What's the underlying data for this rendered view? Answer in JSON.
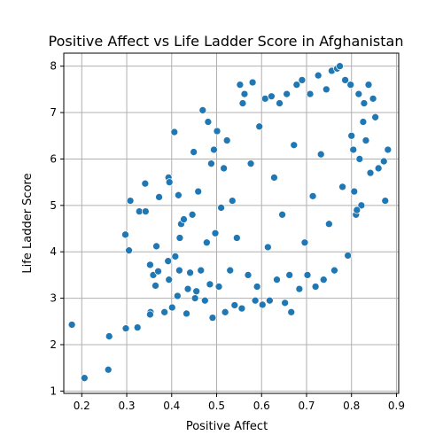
{
  "chart_data": {
    "type": "scatter",
    "title": "Positive Affect vs Life Ladder Score in Afghanistan",
    "xlabel": "Positive Affect",
    "ylabel": "Life Ladder Score",
    "xlim": [
      0.16,
      0.905
    ],
    "ylim": [
      0.95,
      8.28
    ],
    "x_ticks": [
      0.2,
      0.3,
      0.4,
      0.5,
      0.6,
      0.7,
      0.8,
      0.9
    ],
    "x_tick_labels": [
      "0.2",
      "0.3",
      "0.4",
      "0.5",
      "0.6",
      "0.7",
      "0.8",
      "0.9"
    ],
    "y_ticks": [
      1,
      2,
      3,
      4,
      5,
      6,
      7,
      8
    ],
    "y_tick_labels": [
      "1",
      "2",
      "3",
      "4",
      "5",
      "6",
      "7",
      "8"
    ],
    "grid": true,
    "color": "#1f77b4",
    "points": [
      [
        0.178,
        2.43
      ],
      [
        0.206,
        1.28
      ],
      [
        0.259,
        1.46
      ],
      [
        0.261,
        2.18
      ],
      [
        0.298,
        2.35
      ],
      [
        0.324,
        2.37
      ],
      [
        0.297,
        4.37
      ],
      [
        0.305,
        4.03
      ],
      [
        0.308,
        5.1
      ],
      [
        0.328,
        4.87
      ],
      [
        0.342,
        4.87
      ],
      [
        0.341,
        5.47
      ],
      [
        0.352,
        3.72
      ],
      [
        0.353,
        2.7
      ],
      [
        0.352,
        2.65
      ],
      [
        0.359,
        3.5
      ],
      [
        0.366,
        4.12
      ],
      [
        0.364,
        3.27
      ],
      [
        0.37,
        3.58
      ],
      [
        0.372,
        5.18
      ],
      [
        0.384,
        2.7
      ],
      [
        0.392,
        3.8
      ],
      [
        0.393,
        5.6
      ],
      [
        0.394,
        3.4
      ],
      [
        0.395,
        5.5
      ],
      [
        0.401,
        2.8
      ],
      [
        0.406,
        6.58
      ],
      [
        0.408,
        3.9
      ],
      [
        0.413,
        3.05
      ],
      [
        0.415,
        5.22
      ],
      [
        0.417,
        3.6
      ],
      [
        0.418,
        4.3
      ],
      [
        0.421,
        4.6
      ],
      [
        0.427,
        4.7
      ],
      [
        0.433,
        2.67
      ],
      [
        0.436,
        3.2
      ],
      [
        0.441,
        3.55
      ],
      [
        0.446,
        4.8
      ],
      [
        0.449,
        6.15
      ],
      [
        0.452,
        3.0
      ],
      [
        0.455,
        3.15
      ],
      [
        0.459,
        5.3
      ],
      [
        0.465,
        3.6
      ],
      [
        0.469,
        7.05
      ],
      [
        0.474,
        2.95
      ],
      [
        0.478,
        4.2
      ],
      [
        0.481,
        6.8
      ],
      [
        0.485,
        3.3
      ],
      [
        0.488,
        5.9
      ],
      [
        0.491,
        2.58
      ],
      [
        0.494,
        6.2
      ],
      [
        0.497,
        4.4
      ],
      [
        0.501,
        6.6
      ],
      [
        0.505,
        3.25
      ],
      [
        0.51,
        4.95
      ],
      [
        0.516,
        5.8
      ],
      [
        0.519,
        2.7
      ],
      [
        0.523,
        6.4
      ],
      [
        0.53,
        3.6
      ],
      [
        0.535,
        5.1
      ],
      [
        0.54,
        2.85
      ],
      [
        0.545,
        4.3
      ],
      [
        0.552,
        7.6
      ],
      [
        0.556,
        2.78
      ],
      [
        0.558,
        7.2
      ],
      [
        0.562,
        7.4
      ],
      [
        0.57,
        3.5
      ],
      [
        0.576,
        5.9
      ],
      [
        0.58,
        7.65
      ],
      [
        0.586,
        2.95
      ],
      [
        0.59,
        3.25
      ],
      [
        0.595,
        6.7
      ],
      [
        0.602,
        2.86
      ],
      [
        0.608,
        7.3
      ],
      [
        0.614,
        4.1
      ],
      [
        0.618,
        2.95
      ],
      [
        0.622,
        7.35
      ],
      [
        0.628,
        5.6
      ],
      [
        0.634,
        3.4
      ],
      [
        0.64,
        7.2
      ],
      [
        0.646,
        4.8
      ],
      [
        0.652,
        2.9
      ],
      [
        0.656,
        7.4
      ],
      [
        0.662,
        3.5
      ],
      [
        0.666,
        2.7
      ],
      [
        0.672,
        6.3
      ],
      [
        0.678,
        7.6
      ],
      [
        0.684,
        3.2
      ],
      [
        0.69,
        7.7
      ],
      [
        0.696,
        4.2
      ],
      [
        0.702,
        3.5
      ],
      [
        0.708,
        7.4
      ],
      [
        0.714,
        5.2
      ],
      [
        0.72,
        3.25
      ],
      [
        0.726,
        7.8
      ],
      [
        0.732,
        6.1
      ],
      [
        0.738,
        3.4
      ],
      [
        0.744,
        7.5
      ],
      [
        0.75,
        4.6
      ],
      [
        0.756,
        7.9
      ],
      [
        0.762,
        3.6
      ],
      [
        0.768,
        7.95
      ],
      [
        0.774,
        8.0
      ],
      [
        0.78,
        5.4
      ],
      [
        0.786,
        7.7
      ],
      [
        0.792,
        3.92
      ],
      [
        0.798,
        7.6
      ],
      [
        0.804,
        6.2
      ],
      [
        0.81,
        4.8
      ],
      [
        0.816,
        7.4
      ],
      [
        0.822,
        5.0
      ],
      [
        0.828,
        7.2
      ],
      [
        0.832,
        6.4
      ],
      [
        0.838,
        7.6
      ],
      [
        0.842,
        5.7
      ],
      [
        0.848,
        7.3
      ],
      [
        0.853,
        6.9
      ],
      [
        0.86,
        5.8
      ],
      [
        0.872,
        5.95
      ],
      [
        0.875,
        5.1
      ],
      [
        0.881,
        6.2
      ],
      [
        0.812,
        4.9
      ],
      [
        0.806,
        5.3
      ],
      [
        0.826,
        6.8
      ],
      [
        0.818,
        6.0
      ],
      [
        0.8,
        6.5
      ]
    ]
  }
}
